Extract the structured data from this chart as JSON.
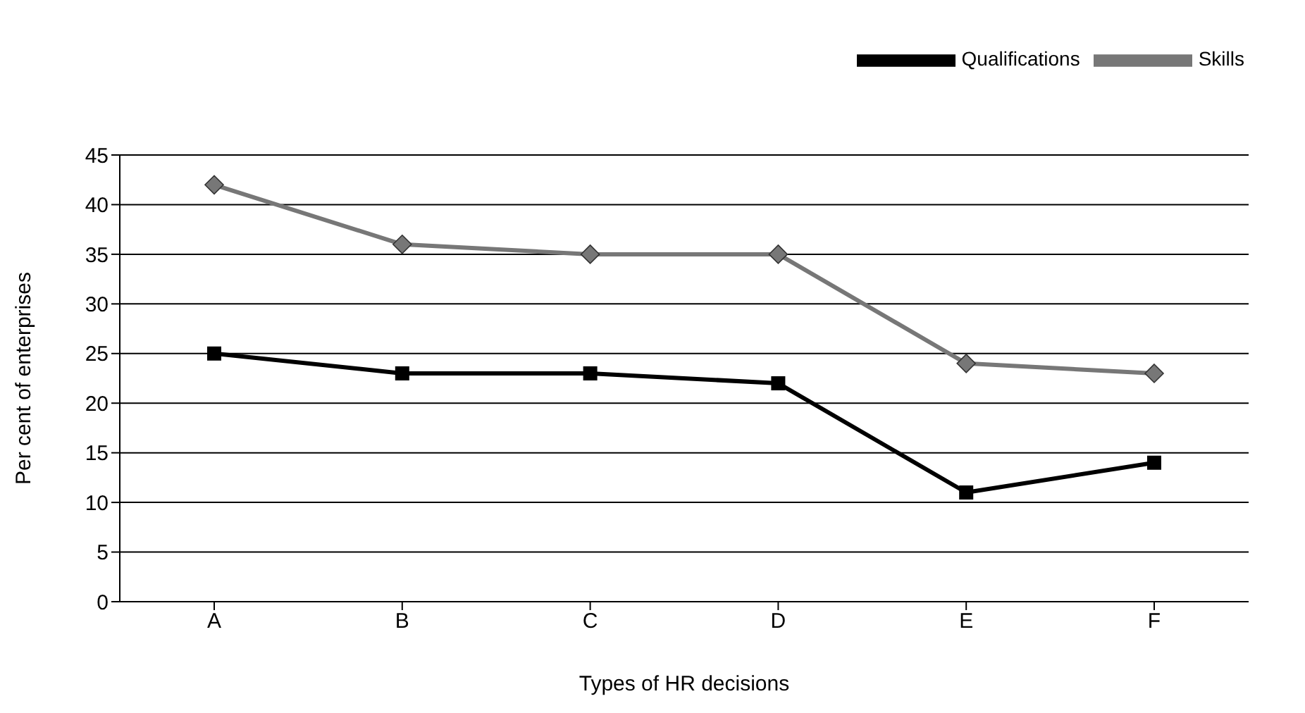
{
  "chart_data": {
    "type": "line",
    "xlabel": "Types of HR decisions",
    "ylabel": "Per cent of enterprises",
    "categories": [
      "A",
      "B",
      "C",
      "D",
      "E",
      "F"
    ],
    "series": [
      {
        "name": "Qualifications",
        "color": "#000000",
        "marker": "square",
        "values": [
          25,
          23,
          23,
          22,
          11,
          14
        ]
      },
      {
        "name": "Skills",
        "color": "#777777",
        "marker": "diamond",
        "values": [
          42,
          36,
          35,
          35,
          24,
          23
        ]
      }
    ],
    "ylim": [
      0,
      45
    ],
    "yticks": [
      0,
      5,
      10,
      15,
      20,
      25,
      30,
      35,
      40,
      45
    ],
    "grid": "y",
    "legend": "top right",
    "line_style": "solid"
  }
}
